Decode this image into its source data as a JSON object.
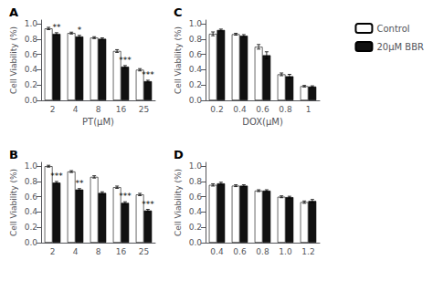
{
  "chart_data": [
    {
      "type": "bar",
      "title": "A",
      "xlabel": "PT(μM)",
      "ylabel": "Cell Viability (%)",
      "categories": [
        "2",
        "4",
        "8",
        "16",
        "25"
      ],
      "series": [
        {
          "name": "Control",
          "color": "#ffffff",
          "values": [
            0.94,
            0.88,
            0.82,
            0.645,
            0.4
          ],
          "errors": [
            0.015,
            0.012,
            0.012,
            0.018,
            0.015
          ]
        },
        {
          "name": "20μM BBR",
          "color": "#111111",
          "values": [
            0.87,
            0.835,
            0.805,
            0.44,
            0.25
          ],
          "errors": [
            0.015,
            0.015,
            0.012,
            0.015,
            0.013
          ]
        }
      ],
      "annotations": [
        {
          "text": "**",
          "x": "2",
          "y": 0.885,
          "series": "20μM BBR"
        },
        {
          "text": "*",
          "x": "4",
          "y": 0.85,
          "series": "20μM BBR"
        },
        {
          "text": "***",
          "x": "16",
          "y": 0.456,
          "series": "20μM BBR"
        },
        {
          "text": "***",
          "x": "25",
          "y": 0.265,
          "series": "20μM BBR"
        }
      ],
      "ylim": [
        0.0,
        1.05
      ],
      "yticks": [
        {
          "value": 0,
          "label": "0.0"
        },
        0.2,
        0.4,
        0.6,
        0.8,
        {
          "value": 1,
          "label": "1.0"
        }
      ],
      "grid": false
    },
    {
      "type": "bar",
      "title": "C",
      "xlabel": "DOX(μM)",
      "ylabel": "Cell Viability (%)",
      "categories": [
        "0.2",
        "0.4",
        "0.6",
        "0.8",
        "1"
      ],
      "series": [
        {
          "name": "Control",
          "color": "#ffffff",
          "values": [
            0.87,
            0.865,
            0.7,
            0.34,
            0.185
          ],
          "errors": [
            0.025,
            0.012,
            0.03,
            0.018,
            0.01
          ]
        },
        {
          "name": "20μM BBR",
          "color": "#111111",
          "values": [
            0.92,
            0.845,
            0.59,
            0.315,
            0.18
          ],
          "errors": [
            0.012,
            0.015,
            0.045,
            0.025,
            0.01
          ]
        }
      ],
      "ylim": [
        0.0,
        1.05
      ],
      "yticks": [
        {
          "value": 0,
          "label": "0.0"
        },
        0.2,
        0.4,
        0.6,
        0.8,
        {
          "value": 1,
          "label": "1.0"
        }
      ],
      "grid": false,
      "legend": "upper right"
    },
    {
      "type": "bar",
      "title": "B",
      "ylabel": "Cell Viability (%)",
      "categories": [
        "2",
        "4",
        "8",
        "16",
        "25"
      ],
      "series": [
        {
          "name": "Control",
          "color": "#ffffff",
          "values": [
            1.0,
            0.93,
            0.86,
            0.725,
            0.63
          ],
          "errors": [
            0.012,
            0.012,
            0.015,
            0.015,
            0.015
          ]
        },
        {
          "name": "20μM BBR",
          "color": "#111111",
          "values": [
            0.785,
            0.695,
            0.65,
            0.52,
            0.42
          ],
          "errors": [
            0.015,
            0.012,
            0.015,
            0.015,
            0.015
          ]
        }
      ],
      "annotations": [
        {
          "text": "***",
          "x": "2",
          "y": 0.802,
          "series": "20μM BBR"
        },
        {
          "text": "**",
          "x": "4",
          "y": 0.71,
          "series": "20μM BBR"
        },
        {
          "text": "***",
          "x": "16",
          "y": 0.537,
          "series": "20μM BBR"
        },
        {
          "text": "***",
          "x": "25",
          "y": 0.437,
          "series": "20μM BBR"
        }
      ],
      "ylim": [
        0.0,
        1.05
      ],
      "yticks": [
        {
          "value": 0,
          "label": "0.0"
        },
        0.2,
        0.4,
        0.6,
        0.8,
        {
          "value": 1,
          "label": "1.0"
        }
      ],
      "grid": false
    },
    {
      "type": "bar",
      "title": "D",
      "ylabel": "Cell Viability (%)",
      "categories": [
        "0.4",
        "0.6",
        "0.8",
        "1.0",
        "1.2"
      ],
      "series": [
        {
          "name": "Control",
          "color": "#ffffff",
          "values": [
            0.755,
            0.745,
            0.68,
            0.6,
            0.53
          ],
          "errors": [
            0.015,
            0.012,
            0.012,
            0.012,
            0.015
          ]
        },
        {
          "name": "20μM BBR",
          "color": "#111111",
          "values": [
            0.775,
            0.745,
            0.68,
            0.595,
            0.545
          ],
          "errors": [
            0.015,
            0.012,
            0.012,
            0.012,
            0.02
          ]
        }
      ],
      "ylim": [
        0.0,
        1.05
      ],
      "yticks": [
        {
          "value": 0,
          "label": "0.0"
        },
        0.2,
        0.4,
        0.6,
        0.8,
        {
          "value": 1,
          "label": "1.0"
        }
      ],
      "grid": false
    }
  ]
}
